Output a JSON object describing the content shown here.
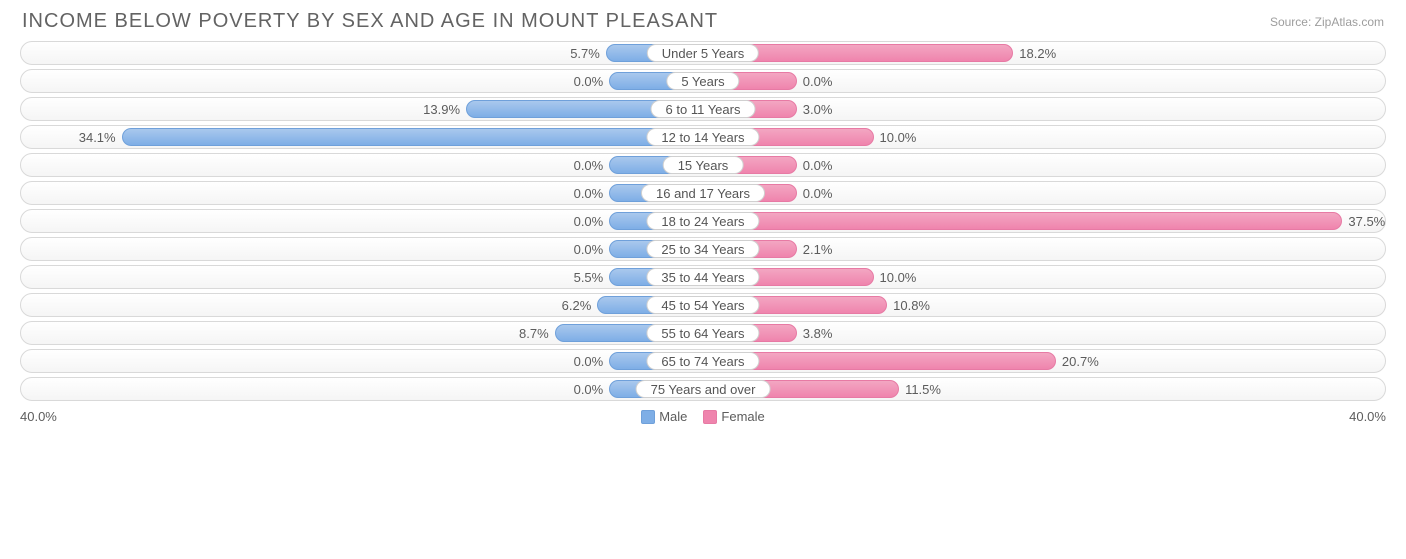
{
  "title": "INCOME BELOW POVERTY BY SEX AND AGE IN MOUNT PLEASANT",
  "source": "Source: ZipAtlas.com",
  "chart": {
    "type": "diverging-bar",
    "axis_max": 40.0,
    "axis_left_label": "40.0%",
    "axis_right_label": "40.0%",
    "min_bar_pct_visual": 5.5,
    "colors": {
      "male_fill_top": "#a9c8ed",
      "male_fill_bottom": "#7eaee6",
      "male_border": "#6fa0da",
      "female_fill_top": "#f3a6c2",
      "female_fill_bottom": "#ef84ad",
      "female_border": "#e77aa4",
      "track_border": "#d9d9d9",
      "track_bg_top": "#ffffff",
      "track_bg_bottom": "#f5f5f5",
      "text": "#5c5c5c",
      "title_text": "#636363",
      "source_text": "#9d9d9d"
    },
    "legend": {
      "male": "Male",
      "female": "Female"
    },
    "rows": [
      {
        "category": "Under 5 Years",
        "male": 5.7,
        "female": 18.2
      },
      {
        "category": "5 Years",
        "male": 0.0,
        "female": 0.0
      },
      {
        "category": "6 to 11 Years",
        "male": 13.9,
        "female": 3.0
      },
      {
        "category": "12 to 14 Years",
        "male": 34.1,
        "female": 10.0
      },
      {
        "category": "15 Years",
        "male": 0.0,
        "female": 0.0
      },
      {
        "category": "16 and 17 Years",
        "male": 0.0,
        "female": 0.0
      },
      {
        "category": "18 to 24 Years",
        "male": 0.0,
        "female": 37.5
      },
      {
        "category": "25 to 34 Years",
        "male": 0.0,
        "female": 2.1
      },
      {
        "category": "35 to 44 Years",
        "male": 5.5,
        "female": 10.0
      },
      {
        "category": "45 to 54 Years",
        "male": 6.2,
        "female": 10.8
      },
      {
        "category": "55 to 64 Years",
        "male": 8.7,
        "female": 3.8
      },
      {
        "category": "65 to 74 Years",
        "male": 0.0,
        "female": 20.7
      },
      {
        "category": "75 Years and over",
        "male": 0.0,
        "female": 11.5
      }
    ]
  }
}
